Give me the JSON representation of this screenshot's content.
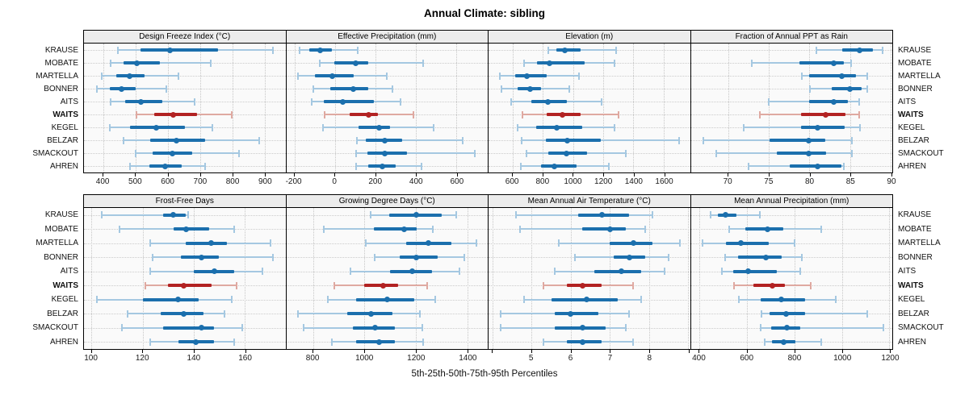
{
  "title": "Annual Climate: sibling",
  "footer": "5th-25th-50th-75th-95th Percentiles",
  "colors": {
    "series": "#1b6fad",
    "series_light": "#a5c8e1",
    "highlight": "#b22222",
    "highlight_light": "#dfa9a1",
    "strip_bg": "#ececec",
    "panel_bg": "#fafafa",
    "grid": "#c8c8c8",
    "border": "#000000"
  },
  "chart_data": {
    "type": "dotplot",
    "note": "Each row shows 5th-25th-50th-75th-95th percentiles: thin whisker p5-p95 with end caps, thick bar p25-p75, dot at median",
    "percentiles": [
      "5th",
      "25th",
      "50th",
      "75th",
      "95th"
    ],
    "stations": [
      "KRAUSE",
      "MOBATE",
      "MARTELLA",
      "BONNER",
      "AITS",
      "WAITS",
      "KEGEL",
      "BELZAR",
      "SMACKOUT",
      "AHREN"
    ],
    "highlight_station": "WAITS",
    "panels": [
      {
        "title": "Design Freeze Index (°C)",
        "xlim": [
          340,
          965
        ],
        "ticks": [
          400,
          500,
          600,
          700,
          800,
          900
        ],
        "values": {
          "KRAUSE": [
            446,
            515,
            608,
            755,
            926
          ],
          "MOBATE": [
            423,
            462,
            504,
            575,
            733
          ],
          "MARTELLA": [
            396,
            441,
            481,
            529,
            633
          ],
          "BONNER": [
            379,
            421,
            456,
            500,
            596
          ],
          "AITS": [
            423,
            467,
            517,
            583,
            683
          ],
          "WAITS": [
            504,
            558,
            618,
            691,
            799
          ],
          "KEGEL": [
            419,
            483,
            565,
            654,
            739
          ],
          "BELZAR": [
            462,
            546,
            627,
            717,
            883
          ],
          "SMACKOUT": [
            500,
            554,
            614,
            675,
            821
          ],
          "AHREN": [
            483,
            542,
            592,
            642,
            717
          ]
        }
      },
      {
        "title": "Effective Precipitation (mm)",
        "xlim": [
          -240,
          755
        ],
        "ticks": [
          -200,
          0,
          200,
          400,
          600
        ],
        "values": {
          "KRAUSE": [
            -174,
            -128,
            -71,
            -14,
            113
          ],
          "MOBATE": [
            -76,
            -1,
            102,
            165,
            436
          ],
          "MARTELLA": [
            -183,
            -98,
            -13,
            93,
            257
          ],
          "BONNER": [
            -107,
            -23,
            90,
            165,
            286
          ],
          "AITS": [
            -116,
            -54,
            40,
            193,
            325
          ],
          "WAITS": [
            -50,
            73,
            166,
            213,
            389
          ],
          "KEGEL": [
            -58,
            116,
            218,
            273,
            489
          ],
          "BELZAR": [
            110,
            153,
            246,
            333,
            633
          ],
          "SMACKOUT": [
            106,
            160,
            246,
            358,
            693
          ],
          "AHREN": [
            106,
            166,
            233,
            300,
            426
          ]
        }
      },
      {
        "title": "Elevation (m)",
        "xlim": [
          440,
          1775
        ],
        "ticks": [
          600,
          800,
          1000,
          1200,
          1400,
          1600
        ],
        "values": {
          "KRAUSE": [
            838,
            887,
            944,
            1048,
            1284
          ],
          "MOBATE": [
            677,
            761,
            845,
            1075,
            1275
          ],
          "MARTELLA": [
            516,
            618,
            695,
            824,
            1039
          ],
          "BONNER": [
            528,
            630,
            713,
            786,
            973
          ],
          "AITS": [
            591,
            725,
            833,
            958,
            1191
          ],
          "WAITS": [
            666,
            827,
            931,
            1048,
            1302
          ],
          "KEGEL": [
            630,
            756,
            892,
            1060,
            1275
          ],
          "BELZAR": [
            659,
            820,
            963,
            1182,
            1702
          ],
          "SMACKOUT": [
            689,
            838,
            958,
            1092,
            1349
          ],
          "AHREN": [
            654,
            788,
            877,
            1021,
            1236
          ]
        }
      },
      {
        "title": "Fraction of Annual PPT as Rain",
        "xlim": [
          65.4,
          90.2
        ],
        "ticks": [
          70,
          75,
          80,
          85,
          90
        ],
        "values": {
          "KRAUSE": [
            80.9,
            84.0,
            86.2,
            87.8,
            89.0
          ],
          "MOBATE": [
            72.9,
            78.8,
            83.0,
            84.2,
            85.1
          ],
          "MARTELLA": [
            79.1,
            80.0,
            84.0,
            85.7,
            87.1
          ],
          "BONNER": [
            80.1,
            82.7,
            85.0,
            86.4,
            87.1
          ],
          "AITS": [
            75.0,
            80.0,
            83.0,
            84.7,
            86.1
          ],
          "WAITS": [
            73.9,
            79.0,
            82.0,
            84.4,
            86.1
          ],
          "KEGEL": [
            71.9,
            79.0,
            81.0,
            84.3,
            86.2
          ],
          "BELZAR": [
            66.9,
            75.1,
            79.9,
            82.0,
            85.2
          ],
          "SMACKOUT": [
            68.5,
            76.0,
            79.9,
            82.0,
            85.2
          ],
          "AHREN": [
            72.5,
            77.6,
            81.0,
            83.9,
            84.2
          ]
        }
      },
      {
        "title": "Frost-Free Days",
        "xlim": [
          97,
          176
        ],
        "ticks": [
          100,
          120,
          140,
          160
        ],
        "values": {
          "KRAUSE": [
            104,
            128,
            132,
            137,
            138
          ],
          "MOBATE": [
            111,
            132,
            137,
            146,
            156
          ],
          "MARTELLA": [
            123,
            137,
            147,
            153,
            170
          ],
          "BONNER": [
            124,
            135,
            143,
            150,
            171
          ],
          "AITS": [
            123,
            140,
            148,
            156,
            167
          ],
          "WAITS": [
            121,
            130,
            136,
            147,
            157
          ],
          "KEGEL": [
            102,
            120,
            134,
            142,
            155
          ],
          "BELZAR": [
            114,
            127,
            136,
            144,
            152
          ],
          "SMACKOUT": [
            112,
            128,
            143,
            148,
            159
          ],
          "AHREN": [
            123,
            134,
            141,
            148,
            156
          ]
        }
      },
      {
        "title": "Growing Degree Days (°C)",
        "xlim": [
          695,
          1480
        ],
        "ticks": [
          800,
          1000,
          1200,
          1400
        ],
        "values": {
          "KRAUSE": [
            1024,
            1095,
            1202,
            1300,
            1358
          ],
          "MOBATE": [
            840,
            1037,
            1153,
            1202,
            1267
          ],
          "MARTELLA": [
            1005,
            1163,
            1248,
            1340,
            1437
          ],
          "BONNER": [
            1040,
            1137,
            1200,
            1284,
            1390
          ],
          "AITS": [
            945,
            1100,
            1187,
            1264,
            1369
          ],
          "WAITS": [
            882,
            1000,
            1072,
            1132,
            1245
          ],
          "KEGEL": [
            858,
            968,
            1088,
            1195,
            1274
          ],
          "BELZAR": [
            742,
            932,
            1024,
            1109,
            1216
          ],
          "SMACKOUT": [
            763,
            953,
            1040,
            1118,
            1224
          ],
          "AHREN": [
            874,
            968,
            1058,
            1119,
            1227
          ]
        }
      },
      {
        "title": "Mean Annual Air Temperature (°C)",
        "xlim": [
          3.9,
          9.05
        ],
        "ticks": [
          5,
          6,
          7,
          8
        ],
        "minor_ticks": [
          4,
          9
        ],
        "values": {
          "KRAUSE": [
            4.6,
            6.2,
            6.8,
            7.5,
            8.1
          ],
          "MOBATE": [
            4.7,
            6.3,
            7.0,
            7.4,
            7.9
          ],
          "MARTELLA": [
            5.7,
            7.0,
            7.6,
            8.1,
            8.8
          ],
          "BONNER": [
            6.1,
            7.1,
            7.5,
            7.9,
            8.5
          ],
          "AITS": [
            5.6,
            6.6,
            7.3,
            7.8,
            8.4
          ],
          "WAITS": [
            5.3,
            5.9,
            6.3,
            6.8,
            7.6
          ],
          "KEGEL": [
            4.8,
            5.5,
            6.4,
            7.2,
            7.8
          ],
          "BELZAR": [
            4.2,
            5.6,
            6.0,
            6.7,
            7.5
          ],
          "SMACKOUT": [
            4.2,
            5.6,
            6.3,
            6.9,
            7.4
          ],
          "AHREN": [
            5.3,
            5.9,
            6.3,
            6.8,
            7.6
          ]
        }
      },
      {
        "title": "Mean Annual Precipitation (mm)",
        "xlim": [
          363,
          1212
        ],
        "ticks": [
          400,
          600,
          800,
          1000,
          1200
        ],
        "values": {
          "KRAUSE": [
            446,
            477,
            509,
            554,
            655
          ],
          "MOBATE": [
            525,
            594,
            686,
            751,
            914
          ],
          "MARTELLA": [
            414,
            511,
            573,
            693,
            800
          ],
          "BONNER": [
            506,
            561,
            678,
            745,
            831
          ],
          "AITS": [
            494,
            540,
            606,
            724,
            825
          ],
          "WAITS": [
            544,
            626,
            707,
            759,
            870
          ],
          "KEGEL": [
            566,
            657,
            744,
            845,
            974
          ],
          "BELZAR": [
            661,
            695,
            764,
            845,
            1106
          ],
          "SMACKOUT": [
            657,
            701,
            767,
            825,
            1173
          ],
          "AHREN": [
            676,
            704,
            755,
            805,
            912
          ]
        }
      }
    ]
  }
}
